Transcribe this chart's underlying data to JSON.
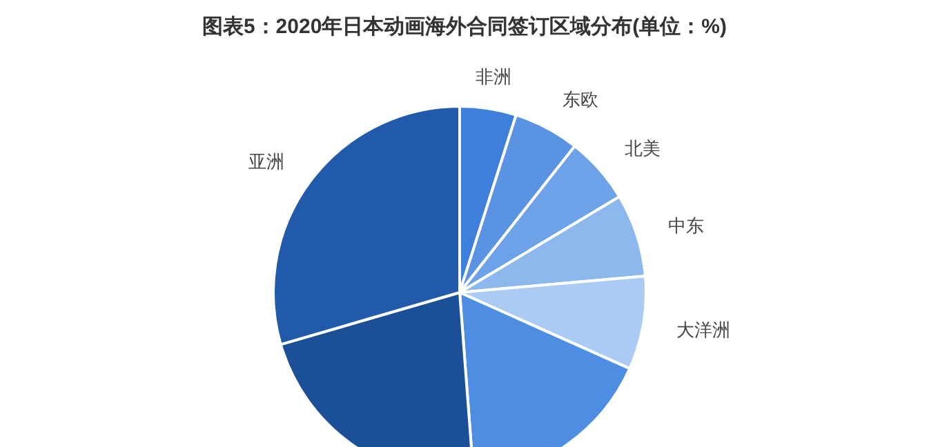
{
  "chart_data": {
    "type": "pie",
    "title": "图表5：2020年日本动画海外合同签订区域分布(单位：%)",
    "categories": [
      "非洲",
      "东欧",
      "北美",
      "中东",
      "大洋洲",
      null,
      null,
      "亚洲"
    ],
    "values": [
      4.9,
      5.7,
      5.8,
      7.2,
      8.1,
      17.1,
      21.7,
      29.5
    ],
    "colors": [
      "#3f7fdc",
      "#5a93e2",
      "#6ea2e8",
      "#8db8ee",
      "#aacbf4",
      "#4d8de2",
      "#1b4f98",
      "#2159ab"
    ]
  }
}
